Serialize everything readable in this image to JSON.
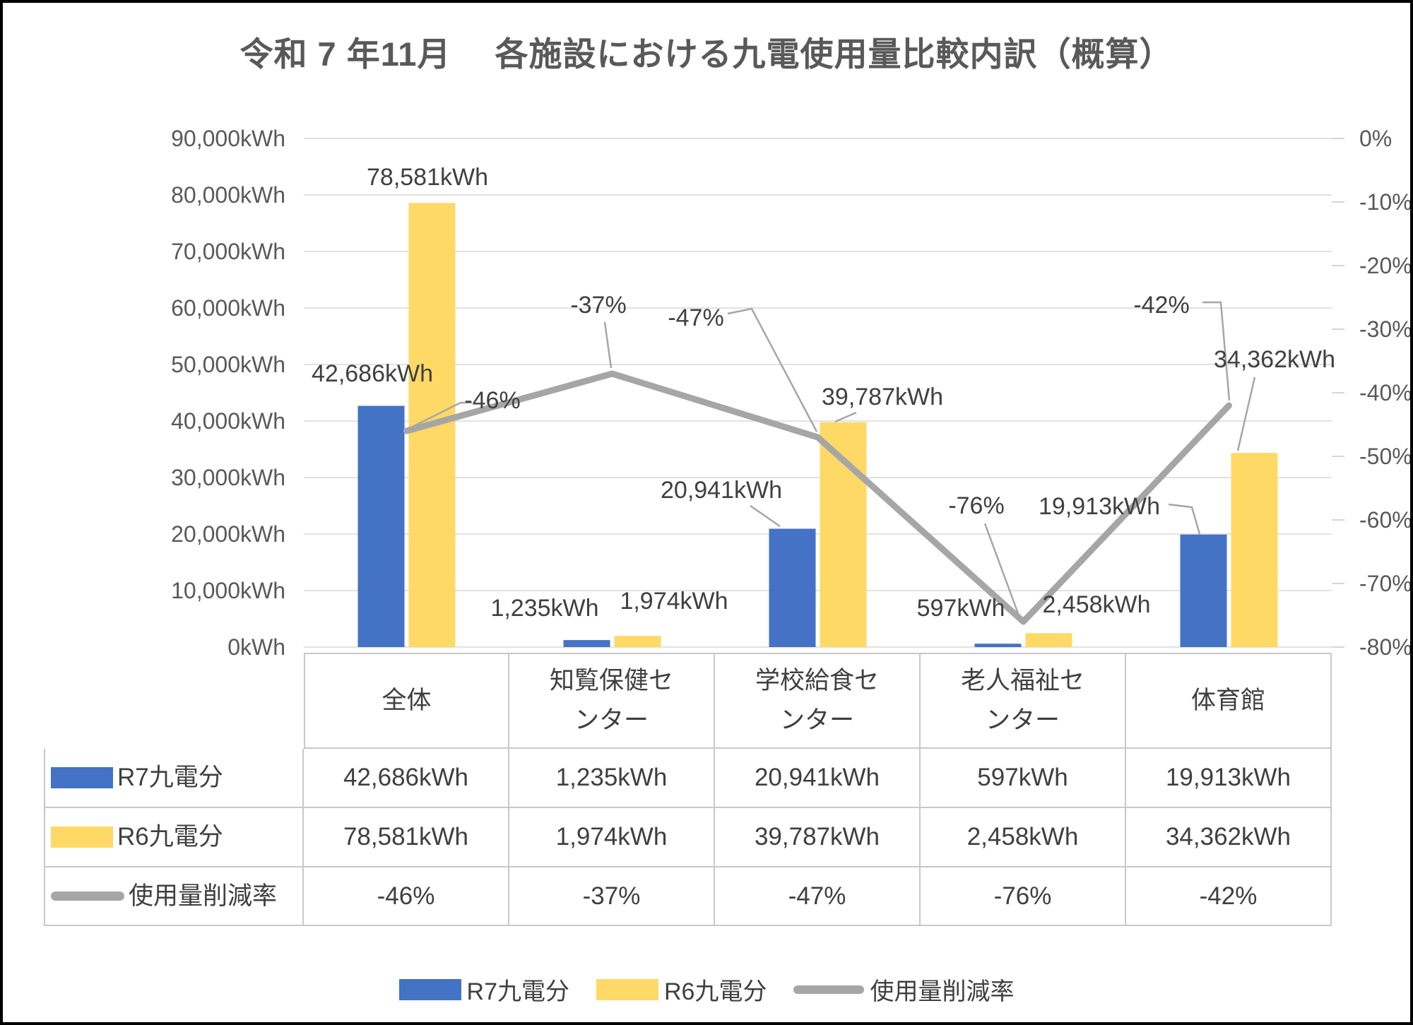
{
  "title": "令和 7 年11月　 各施設における九電使用量比較内訳（概算）",
  "colors": {
    "r7_bar_blue": "#4472c4",
    "r6_bar_yellow": "#ffd966",
    "reduction_line_gray": "#a6a6a6",
    "gridline": "#d9d9d9",
    "axis_text": "#595959",
    "label_text": "#404040",
    "table_border": "#c8c8c8"
  },
  "chart_data": {
    "type": "bar",
    "subtype": "combo-bar-line-dual-axis",
    "title": "令和 7 年11月　 各施設における九電使用量比較内訳（概算）",
    "categories": [
      "全体",
      "知覧保健センター",
      "学校給食センター",
      "老人福祉センター",
      "体育館"
    ],
    "series": [
      {
        "name": "R7九電分",
        "type": "bar",
        "axis": "left",
        "color": "#4472c4",
        "values": [
          42686,
          1235,
          20941,
          597,
          19913
        ],
        "labels": [
          "42,686kWh",
          "1,235kWh",
          "20,941kWh",
          "597kWh",
          "19,913kWh"
        ]
      },
      {
        "name": "R6九電分",
        "type": "bar",
        "axis": "left",
        "color": "#ffd966",
        "values": [
          78581,
          1974,
          39787,
          2458,
          34362
        ],
        "labels": [
          "78,581kWh",
          "1,974kWh",
          "39,787kWh",
          "2,458kWh",
          "34,362kWh"
        ]
      },
      {
        "name": "使用量削減率",
        "type": "line",
        "axis": "right",
        "color": "#a6a6a6",
        "values": [
          -46,
          -37,
          -47,
          -76,
          -42
        ],
        "labels": [
          "-46%",
          "-37%",
          "-47%",
          "-76%",
          "-42%"
        ]
      }
    ],
    "left_axis": {
      "min": 0,
      "max": 90000,
      "step": 10000,
      "unit": "kWh",
      "labels": [
        "90,000kWh",
        "80,000kWh",
        "70,000kWh",
        "60,000kWh",
        "50,000kWh",
        "40,000kWh",
        "30,000kWh",
        "20,000kWh",
        "10,000kWh",
        "0kWh"
      ]
    },
    "right_axis": {
      "min": -80,
      "max": 0,
      "step": 10,
      "unit": "%",
      "labels": [
        "0%",
        "-10%",
        "-20%",
        "-30%",
        "-40%",
        "-50%",
        "-60%",
        "-70%",
        "-80%"
      ]
    },
    "grid": true,
    "legend_position": "bottom"
  },
  "table": {
    "columns_wrapped": [
      "全体",
      "知覧保健セ\nンター",
      "学校給食セ\nンター",
      "老人福祉セ\nンター",
      "体育館"
    ],
    "rows": [
      {
        "label": "R7九電分",
        "swatch": "bar-blue",
        "values": [
          "42,686kWh",
          "1,235kWh",
          "20,941kWh",
          "597kWh",
          "19,913kWh"
        ]
      },
      {
        "label": "R6九電分",
        "swatch": "bar-yellow",
        "values": [
          "78,581kWh",
          "1,974kWh",
          "39,787kWh",
          "2,458kWh",
          "34,362kWh"
        ]
      },
      {
        "label": "使用量削減率",
        "swatch": "line-gray",
        "values": [
          "-46%",
          "-37%",
          "-47%",
          "-76%",
          "-42%"
        ]
      }
    ]
  },
  "legend": {
    "items": [
      {
        "label": "R7九電分",
        "swatch": "bar-blue"
      },
      {
        "label": "R6九電分",
        "swatch": "bar-yellow"
      },
      {
        "label": "使用量削減率",
        "swatch": "line-gray"
      }
    ]
  }
}
